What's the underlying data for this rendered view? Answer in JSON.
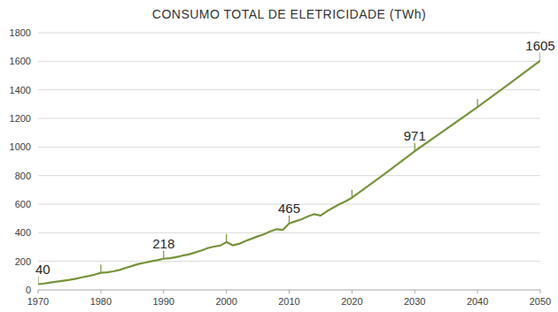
{
  "chart_data": {
    "type": "line",
    "title": "CONSUMO TOTAL DE ELETRICIDADE (TWh)",
    "x": [
      1970,
      1971,
      1972,
      1973,
      1974,
      1975,
      1976,
      1977,
      1978,
      1979,
      1980,
      1981,
      1982,
      1983,
      1984,
      1985,
      1986,
      1987,
      1988,
      1989,
      1990,
      1991,
      1992,
      1993,
      1994,
      1995,
      1996,
      1997,
      1998,
      1999,
      2000,
      2001,
      2002,
      2003,
      2004,
      2005,
      2006,
      2007,
      2008,
      2009,
      2010,
      2011,
      2012,
      2013,
      2014,
      2015,
      2016,
      2017,
      2018,
      2019,
      2020,
      2025,
      2030,
      2035,
      2040,
      2045,
      2050
    ],
    "values": [
      40,
      45,
      52,
      58,
      64,
      70,
      78,
      88,
      97,
      107,
      120,
      123,
      130,
      140,
      155,
      168,
      182,
      190,
      200,
      208,
      218,
      222,
      230,
      240,
      248,
      262,
      275,
      292,
      303,
      310,
      335,
      312,
      322,
      342,
      358,
      375,
      390,
      410,
      425,
      420,
      465,
      480,
      495,
      515,
      530,
      520,
      550,
      575,
      600,
      620,
      645,
      805,
      971,
      1125,
      1280,
      1440,
      1605
    ],
    "color": "#77933c",
    "annotations": [
      {
        "x": 1970,
        "y": 40
      },
      {
        "x": 1990,
        "y": 218
      },
      {
        "x": 2010,
        "y": 465
      },
      {
        "x": 2030,
        "y": 971
      },
      {
        "x": 2050,
        "y": 1605
      }
    ],
    "xlim": [
      1970,
      2050
    ],
    "xticks": [
      1970,
      1980,
      1990,
      2000,
      2010,
      2020,
      2030,
      2040,
      2050
    ],
    "ylim": [
      0,
      1800
    ],
    "yticks": [
      0,
      200,
      400,
      600,
      800,
      1000,
      1200,
      1400,
      1600,
      1800
    ],
    "grid": true
  }
}
